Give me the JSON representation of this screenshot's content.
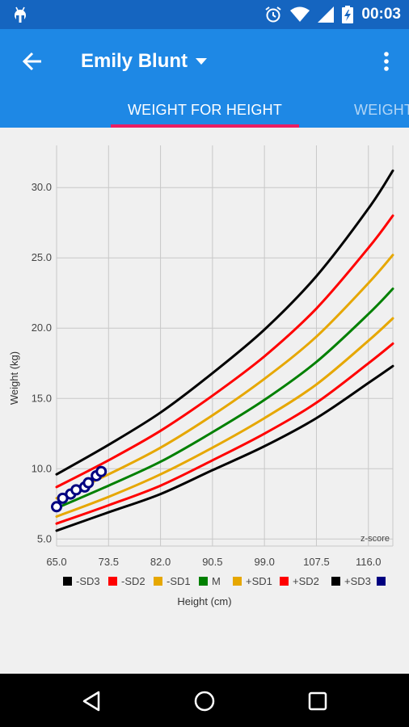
{
  "status_bar": {
    "time": "00:03",
    "icons": [
      "android-debug-icon",
      "alarm-icon",
      "wifi-icon",
      "signal-icon",
      "battery-charging-icon"
    ]
  },
  "app_bar": {
    "title": "Emily Blunt",
    "back_icon": "arrow-back-icon",
    "dropdown_icon": "caret-down-icon",
    "menu_icon": "more-vert-icon"
  },
  "tabs": [
    {
      "label": "WEIGHT FOR HEIGHT",
      "active": true
    },
    {
      "label": "WEIGHT",
      "active": false
    }
  ],
  "colors": {
    "status_bar": "#1565c0",
    "app_bar": "#1e88e5",
    "tab_indicator": "#e91e63"
  },
  "chart_data": {
    "type": "line",
    "xlabel": "Height (cm)",
    "ylabel": "Weight (kg)",
    "corner_label": "z-score",
    "xlim": [
      65,
      120
    ],
    "ylim": [
      4.5,
      33
    ],
    "x_ticks": [
      "65.0",
      "73.5",
      "82.0",
      "90.5",
      "99.0",
      "107.5",
      "116.0"
    ],
    "y_ticks": [
      "5.0",
      "10.0",
      "15.0",
      "20.0",
      "25.0",
      "30.0"
    ],
    "grid": true,
    "legend_position": "bottom",
    "series": [
      {
        "name": "-SD3",
        "color": "#000000",
        "x": [
          65,
          73.5,
          82,
          90.5,
          99,
          107.5,
          116,
          120
        ],
        "y": [
          5.6,
          6.9,
          8.2,
          9.9,
          11.6,
          13.6,
          16.1,
          17.3
        ]
      },
      {
        "name": "-SD2",
        "color": "#ff0000",
        "x": [
          65,
          73.5,
          82,
          90.5,
          99,
          107.5,
          116,
          120
        ],
        "y": [
          6.1,
          7.4,
          8.8,
          10.6,
          12.5,
          14.7,
          17.5,
          18.9
        ]
      },
      {
        "name": "-SD1",
        "color": "#e6a700",
        "x": [
          65,
          73.5,
          82,
          90.5,
          99,
          107.5,
          116,
          120
        ],
        "y": [
          6.6,
          8.0,
          9.6,
          11.5,
          13.6,
          16.0,
          19.1,
          20.7
        ]
      },
      {
        "name": "M",
        "color": "#008000",
        "x": [
          65,
          73.5,
          82,
          90.5,
          99,
          107.5,
          116,
          120
        ],
        "y": [
          7.2,
          8.8,
          10.5,
          12.6,
          14.9,
          17.6,
          21.0,
          22.8
        ]
      },
      {
        "name": "+SD1",
        "color": "#e6a700",
        "x": [
          65,
          73.5,
          82,
          90.5,
          99,
          107.5,
          116,
          120
        ],
        "y": [
          7.9,
          9.6,
          11.5,
          13.8,
          16.4,
          19.4,
          23.2,
          25.2
        ]
      },
      {
        "name": "+SD2",
        "color": "#ff0000",
        "x": [
          65,
          73.5,
          82,
          90.5,
          99,
          107.5,
          116,
          120
        ],
        "y": [
          8.7,
          10.6,
          12.7,
          15.2,
          18.0,
          21.4,
          25.7,
          28.0
        ]
      },
      {
        "name": "+SD3",
        "color": "#000000",
        "x": [
          65,
          73.5,
          82,
          90.5,
          99,
          107.5,
          116,
          120
        ],
        "y": [
          9.6,
          11.7,
          14.0,
          16.8,
          19.9,
          23.7,
          28.5,
          31.2
        ]
      }
    ],
    "legend": [
      {
        "label": "-SD3",
        "color": "#000000"
      },
      {
        "label": "-SD2",
        "color": "#ff0000"
      },
      {
        "label": "-SD1",
        "color": "#e6a700"
      },
      {
        "label": "M",
        "color": "#008000"
      },
      {
        "label": "+SD1",
        "color": "#e6a700"
      },
      {
        "label": "+SD2",
        "color": "#ff0000"
      },
      {
        "label": "+SD3",
        "color": "#000000"
      },
      {
        "label": "",
        "color": "#000080"
      }
    ],
    "patient_points": {
      "color": "#000080",
      "x": [
        65.0,
        66.0,
        67.3,
        68.2,
        69.6,
        70.2,
        71.5,
        72.3
      ],
      "y": [
        7.3,
        7.9,
        8.2,
        8.5,
        8.7,
        9.0,
        9.5,
        9.8
      ]
    }
  },
  "nav_bar": {
    "icons": [
      "back-triangle-icon",
      "home-circle-icon",
      "recents-square-icon"
    ]
  }
}
